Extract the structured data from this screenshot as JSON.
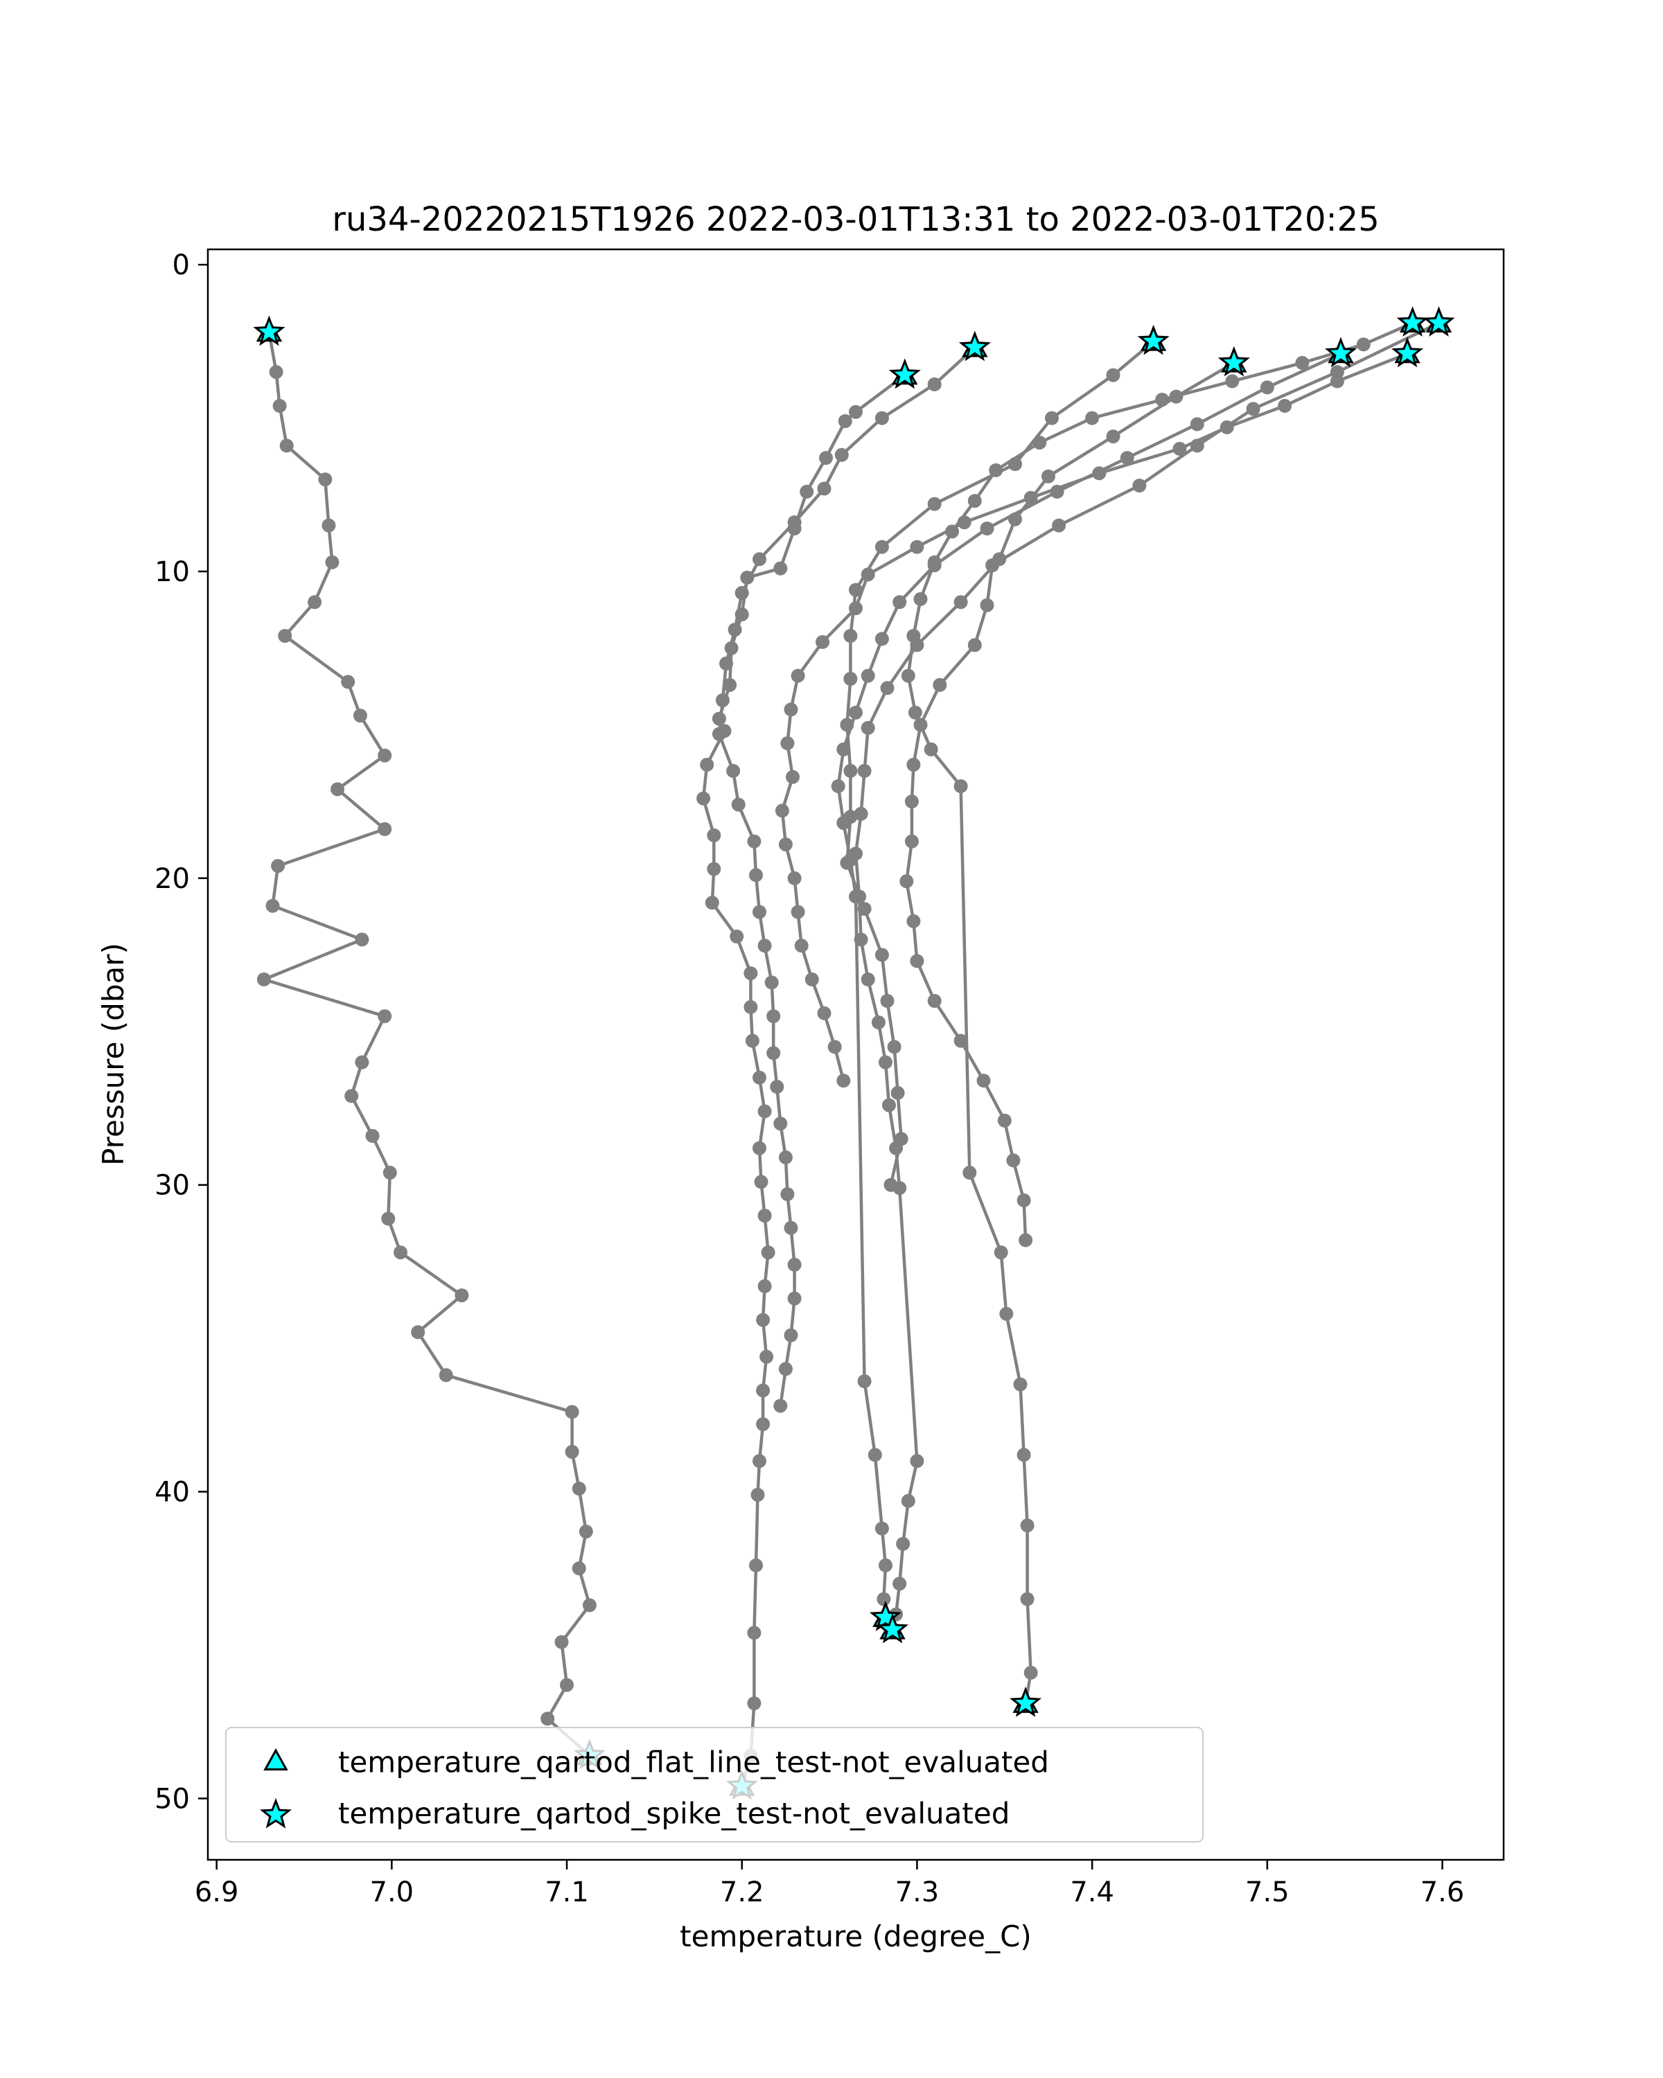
{
  "chart_data": {
    "type": "scatter",
    "title": "ru34-20220215T1926 2022-03-01T13:31 to 2022-03-01T20:25",
    "xlabel": "temperature (degree_C)",
    "ylabel": "Pressure (dbar)",
    "xlim": [
      6.895,
      7.635
    ],
    "ylim": [
      52.0,
      -0.5
    ],
    "y_inverted": true,
    "xticks": [
      6.9,
      7.0,
      7.1,
      7.2,
      7.3,
      7.4,
      7.5,
      7.6
    ],
    "xtick_labels": [
      "6.9",
      "7.0",
      "7.1",
      "7.2",
      "7.3",
      "7.4",
      "7.5",
      "7.6"
    ],
    "yticks": [
      0,
      10,
      20,
      30,
      40,
      50
    ],
    "ytick_labels": [
      "0",
      "10",
      "20",
      "30",
      "40",
      "50"
    ],
    "grid": false,
    "line_color": "#808080",
    "marker_color": "#00ffff",
    "legend_position": "lower-left",
    "legend": [
      {
        "label": "temperature_qartod_flat_line_test-not_evaluated",
        "marker": "triangle"
      },
      {
        "label": "temperature_qartod_spike_test-not_evaluated",
        "marker": "star"
      }
    ],
    "series": [
      {
        "x": [
          6.93,
          6.934,
          6.936,
          6.94,
          6.962,
          6.964,
          6.966,
          6.956,
          6.939,
          6.975,
          6.982,
          6.996,
          6.969,
          6.996,
          6.935,
          6.932,
          6.983,
          6.927,
          6.996,
          6.983,
          6.977,
          6.989,
          6.999,
          6.998,
          7.005,
          7.04,
          7.015,
          7.031,
          7.103,
          7.103,
          7.107,
          7.111,
          7.107,
          7.113,
          7.097,
          7.1,
          7.089,
          7.113
        ],
        "y": [
          2.2,
          3.5,
          4.6,
          5.9,
          7.0,
          8.5,
          9.7,
          11.0,
          12.1,
          13.6,
          14.7,
          16.0,
          17.1,
          18.4,
          19.6,
          20.9,
          22.0,
          23.3,
          24.5,
          26.0,
          27.1,
          28.4,
          29.6,
          31.1,
          32.2,
          33.6,
          34.8,
          36.2,
          37.4,
          38.7,
          39.9,
          41.3,
          42.5,
          43.7,
          44.9,
          46.3,
          47.4,
          48.6
        ]
      },
      {
        "x": [
          7.293,
          7.265,
          7.259,
          7.248,
          7.237,
          7.23,
          7.222,
          7.203,
          7.2,
          7.194,
          7.193,
          7.187,
          7.19,
          7.18,
          7.178,
          7.184,
          7.184,
          7.183,
          7.197,
          7.205,
          7.205,
          7.206,
          7.21,
          7.213,
          7.21,
          7.211,
          7.213,
          7.215,
          7.213,
          7.212,
          7.214,
          7.212,
          7.212,
          7.21,
          7.209,
          7.208,
          7.207,
          7.207,
          7.205,
          7.2
        ],
        "y": [
          3.6,
          4.8,
          5.1,
          6.3,
          7.4,
          8.6,
          9.9,
          10.2,
          11.4,
          12.5,
          13.7,
          14.8,
          15.2,
          16.3,
          17.4,
          18.6,
          19.7,
          20.8,
          21.9,
          23.1,
          24.2,
          25.3,
          26.5,
          27.6,
          28.8,
          29.9,
          31.0,
          32.2,
          33.3,
          34.4,
          35.6,
          36.7,
          37.8,
          39.0,
          40.1,
          42.4,
          44.6,
          46.9,
          48.6,
          49.6
        ]
      },
      {
        "x": [
          7.333,
          7.31,
          7.28,
          7.257,
          7.247,
          7.23,
          7.21,
          7.2,
          7.196,
          7.191,
          7.189,
          7.187,
          7.195,
          7.198,
          7.207,
          7.208,
          7.21,
          7.213,
          7.217,
          7.218,
          7.218,
          7.22,
          7.222,
          7.225,
          7.226,
          7.228,
          7.23,
          7.23,
          7.228,
          7.225,
          7.222
        ],
        "y": [
          2.7,
          3.9,
          5.0,
          6.2,
          7.3,
          8.4,
          9.6,
          10.7,
          11.9,
          13.0,
          14.2,
          15.3,
          16.5,
          17.6,
          18.8,
          19.9,
          21.1,
          22.2,
          23.4,
          24.5,
          25.7,
          26.8,
          28.0,
          29.1,
          30.3,
          31.4,
          32.6,
          33.7,
          34.9,
          36.0,
          37.2
        ]
      },
      {
        "x": [
          7.435,
          7.412,
          7.377,
          7.356,
          7.31,
          7.28,
          7.265,
          7.262,
          7.262,
          7.26,
          7.262,
          7.262,
          7.26,
          7.27,
          7.28,
          7.283,
          7.287,
          7.289,
          7.291,
          7.285
        ],
        "y": [
          2.5,
          3.6,
          5.0,
          6.5,
          7.8,
          9.2,
          10.6,
          12.1,
          13.5,
          15.0,
          16.5,
          18.0,
          19.5,
          21.0,
          22.5,
          24.0,
          25.5,
          27.0,
          28.5,
          30.0
        ]
      },
      {
        "x": [
          7.481,
          7.448,
          7.412,
          7.375,
          7.356,
          7.347,
          7.325,
          7.3,
          7.283,
          7.272,
          7.27,
          7.268,
          7.265,
          7.267,
          7.268,
          7.272,
          7.278,
          7.282,
          7.284,
          7.288,
          7.29,
          7.3,
          7.295,
          7.292,
          7.29,
          7.288,
          7.286
        ],
        "y": [
          3.2,
          4.3,
          5.6,
          6.9,
          8.3,
          9.6,
          11.0,
          12.4,
          13.8,
          15.1,
          16.5,
          17.9,
          19.2,
          20.6,
          22.0,
          23.3,
          24.7,
          26.0,
          27.4,
          28.8,
          30.1,
          39.0,
          40.3,
          41.7,
          43.0,
          44.0,
          44.5
        ]
      },
      {
        "x": [
          7.598,
          7.54,
          7.492,
          7.46,
          7.427,
          7.381,
          7.343,
          7.34,
          7.333,
          7.313,
          7.302,
          7.298,
          7.297,
          7.297,
          7.294,
          7.298,
          7.3,
          7.31,
          7.325,
          7.338,
          7.35,
          7.355,
          7.361,
          7.362
        ],
        "y": [
          1.9,
          3.5,
          4.7,
          5.9,
          7.2,
          8.5,
          9.8,
          11.1,
          12.4,
          13.7,
          15.0,
          16.3,
          17.5,
          18.8,
          20.1,
          21.4,
          22.7,
          24.0,
          25.3,
          26.6,
          27.9,
          29.2,
          30.5,
          31.8
        ]
      },
      {
        "x": [
          7.583,
          7.555,
          7.52,
          7.48,
          7.44,
          7.4,
          7.37,
          7.345,
          7.333,
          7.32,
          7.31,
          7.302,
          7.298,
          7.295,
          7.299,
          7.308,
          7.325,
          7.33,
          7.348,
          7.351,
          7.359,
          7.361,
          7.363,
          7.363,
          7.365,
          7.362
        ],
        "y": [
          1.9,
          2.6,
          3.2,
          3.8,
          4.4,
          5.0,
          5.8,
          6.7,
          7.7,
          8.7,
          9.7,
          10.9,
          12.1,
          13.4,
          14.6,
          15.8,
          17.0,
          29.6,
          32.2,
          34.2,
          36.5,
          38.8,
          41.1,
          43.5,
          45.9,
          46.9
        ]
      },
      {
        "x": [
          7.542,
          7.5,
          7.46,
          7.42,
          7.38,
          7.34,
          7.31,
          7.29,
          7.28,
          7.272,
          7.265,
          7.258,
          7.255,
          7.258,
          7.262,
          7.265,
          7.27,
          7.276,
          7.28,
          7.282,
          7.281,
          7.283
        ],
        "y": [
          2.9,
          4.0,
          5.2,
          6.3,
          7.4,
          8.6,
          9.8,
          11.0,
          12.2,
          13.4,
          14.6,
          15.8,
          17.0,
          18.2,
          19.4,
          20.6,
          36.4,
          38.8,
          41.2,
          42.4,
          43.5,
          44.1
        ]
      },
      {
        "x": [
          7.58,
          7.54,
          7.51,
          7.477,
          7.45,
          7.404,
          7.365,
          7.327,
          7.3,
          7.272,
          7.265,
          7.246,
          7.232,
          7.228,
          7.226,
          7.229,
          7.223,
          7.225,
          7.23,
          7.232,
          7.234,
          7.24,
          7.247,
          7.253,
          7.258
        ],
        "y": [
          2.9,
          3.8,
          4.6,
          5.3,
          6.0,
          6.8,
          7.6,
          8.4,
          9.2,
          10.1,
          11.2,
          12.3,
          13.4,
          14.5,
          15.6,
          16.7,
          17.8,
          18.9,
          20.0,
          21.1,
          22.2,
          23.3,
          24.4,
          25.5,
          26.6
        ]
      }
    ],
    "flat_line_markers": {
      "x": [
        7.598,
        7.583,
        7.58,
        7.542,
        7.481,
        7.435,
        7.333,
        7.293,
        7.282,
        7.286,
        7.362,
        7.2,
        7.113,
        6.93
      ],
      "y": [
        1.9,
        1.9,
        2.9,
        2.9,
        3.2,
        2.5,
        2.7,
        3.6,
        44.1,
        44.5,
        46.9,
        49.6,
        48.6,
        2.2
      ]
    },
    "spike_markers": {
      "x": [
        7.598,
        7.583,
        7.58,
        7.542,
        7.481,
        7.435,
        7.333,
        7.293,
        7.282,
        7.286,
        7.362,
        7.2,
        7.113,
        6.93
      ],
      "y": [
        1.9,
        1.9,
        2.9,
        2.9,
        3.2,
        2.5,
        2.7,
        3.6,
        44.1,
        44.5,
        46.9,
        49.6,
        48.6,
        2.2
      ]
    }
  }
}
